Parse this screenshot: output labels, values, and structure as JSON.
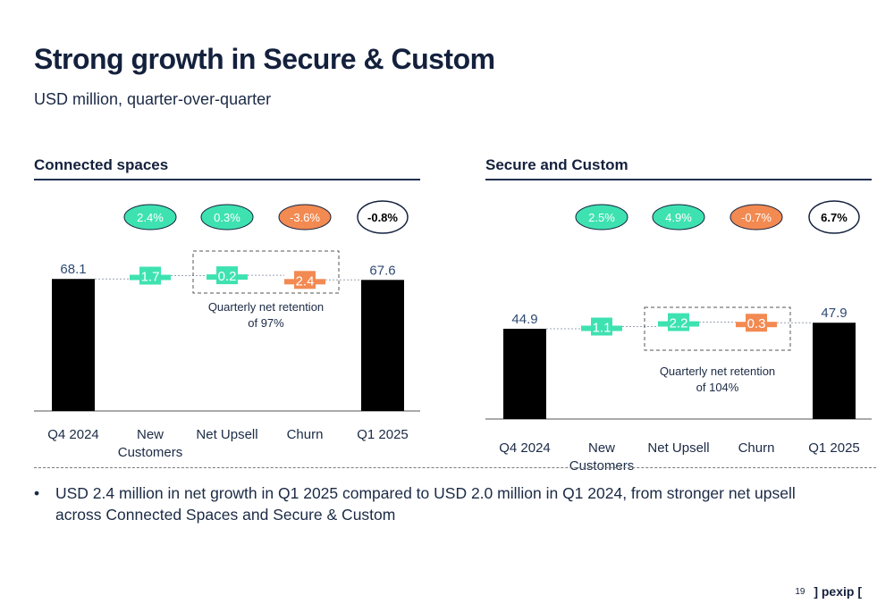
{
  "page": {
    "title": "Strong growth in Secure & Custom",
    "subtitle": "USD million, quarter-over-quarter"
  },
  "colors": {
    "positive": "#3ee2b0",
    "negative": "#f28a52",
    "total": "#000000",
    "value_text": "#2f4a73",
    "dark": "#1b2a45"
  },
  "chart_data": [
    {
      "type": "bar",
      "subtype": "waterfall",
      "title": "Connected spaces",
      "categories": [
        "Q4 2024",
        "New Customers",
        "Net Upsell",
        "Churn",
        "Q1 2025"
      ],
      "category_lines": [
        [
          "Q4 2024"
        ],
        [
          "New",
          "Customers"
        ],
        [
          "Net Upsell"
        ],
        [
          "Churn"
        ],
        [
          "Q1 2025"
        ]
      ],
      "values": [
        68.1,
        1.7,
        0.2,
        2.4,
        67.6
      ],
      "value_labels": [
        "68.1",
        "1.7",
        "0.2",
        "2.4",
        "67.6"
      ],
      "kinds": [
        "total",
        "increase",
        "increase",
        "decrease",
        "total"
      ],
      "percent_labels": [
        "",
        "2.4%",
        "0.3%",
        "-3.6%",
        "-0.8%"
      ],
      "annotation": "Quarterly net retention of 97%",
      "annotation_lines": [
        "Quarterly net retention",
        "of 97%"
      ]
    },
    {
      "type": "bar",
      "subtype": "waterfall",
      "title": "Secure and Custom",
      "categories": [
        "Q4 2024",
        "New Customers",
        "Net Upsell",
        "Churn",
        "Q1 2025"
      ],
      "category_lines": [
        [
          "Q4 2024"
        ],
        [
          "New",
          "Customers"
        ],
        [
          "Net Upsell"
        ],
        [
          "Churn"
        ],
        [
          "Q1 2025"
        ]
      ],
      "values": [
        44.9,
        1.1,
        2.2,
        0.3,
        47.9
      ],
      "value_labels": [
        "44.9",
        "1.1",
        "2.2",
        "0.3",
        "47.9"
      ],
      "kinds": [
        "total",
        "increase",
        "increase",
        "decrease",
        "total"
      ],
      "percent_labels": [
        "",
        "2.5%",
        "4.9%",
        "-0.7%",
        "6.7%"
      ],
      "annotation": "Quarterly net retention of 104%",
      "annotation_lines": [
        "Quarterly net retention",
        "of 104%"
      ]
    }
  ],
  "bullets": [
    "USD 2.4 million in net growth in Q1 2025 compared to USD 2.0 million in Q1 2024, from stronger net upsell across Connected Spaces and Secure & Custom"
  ],
  "footer": {
    "page_number": "19",
    "logo": "] pexip ["
  }
}
